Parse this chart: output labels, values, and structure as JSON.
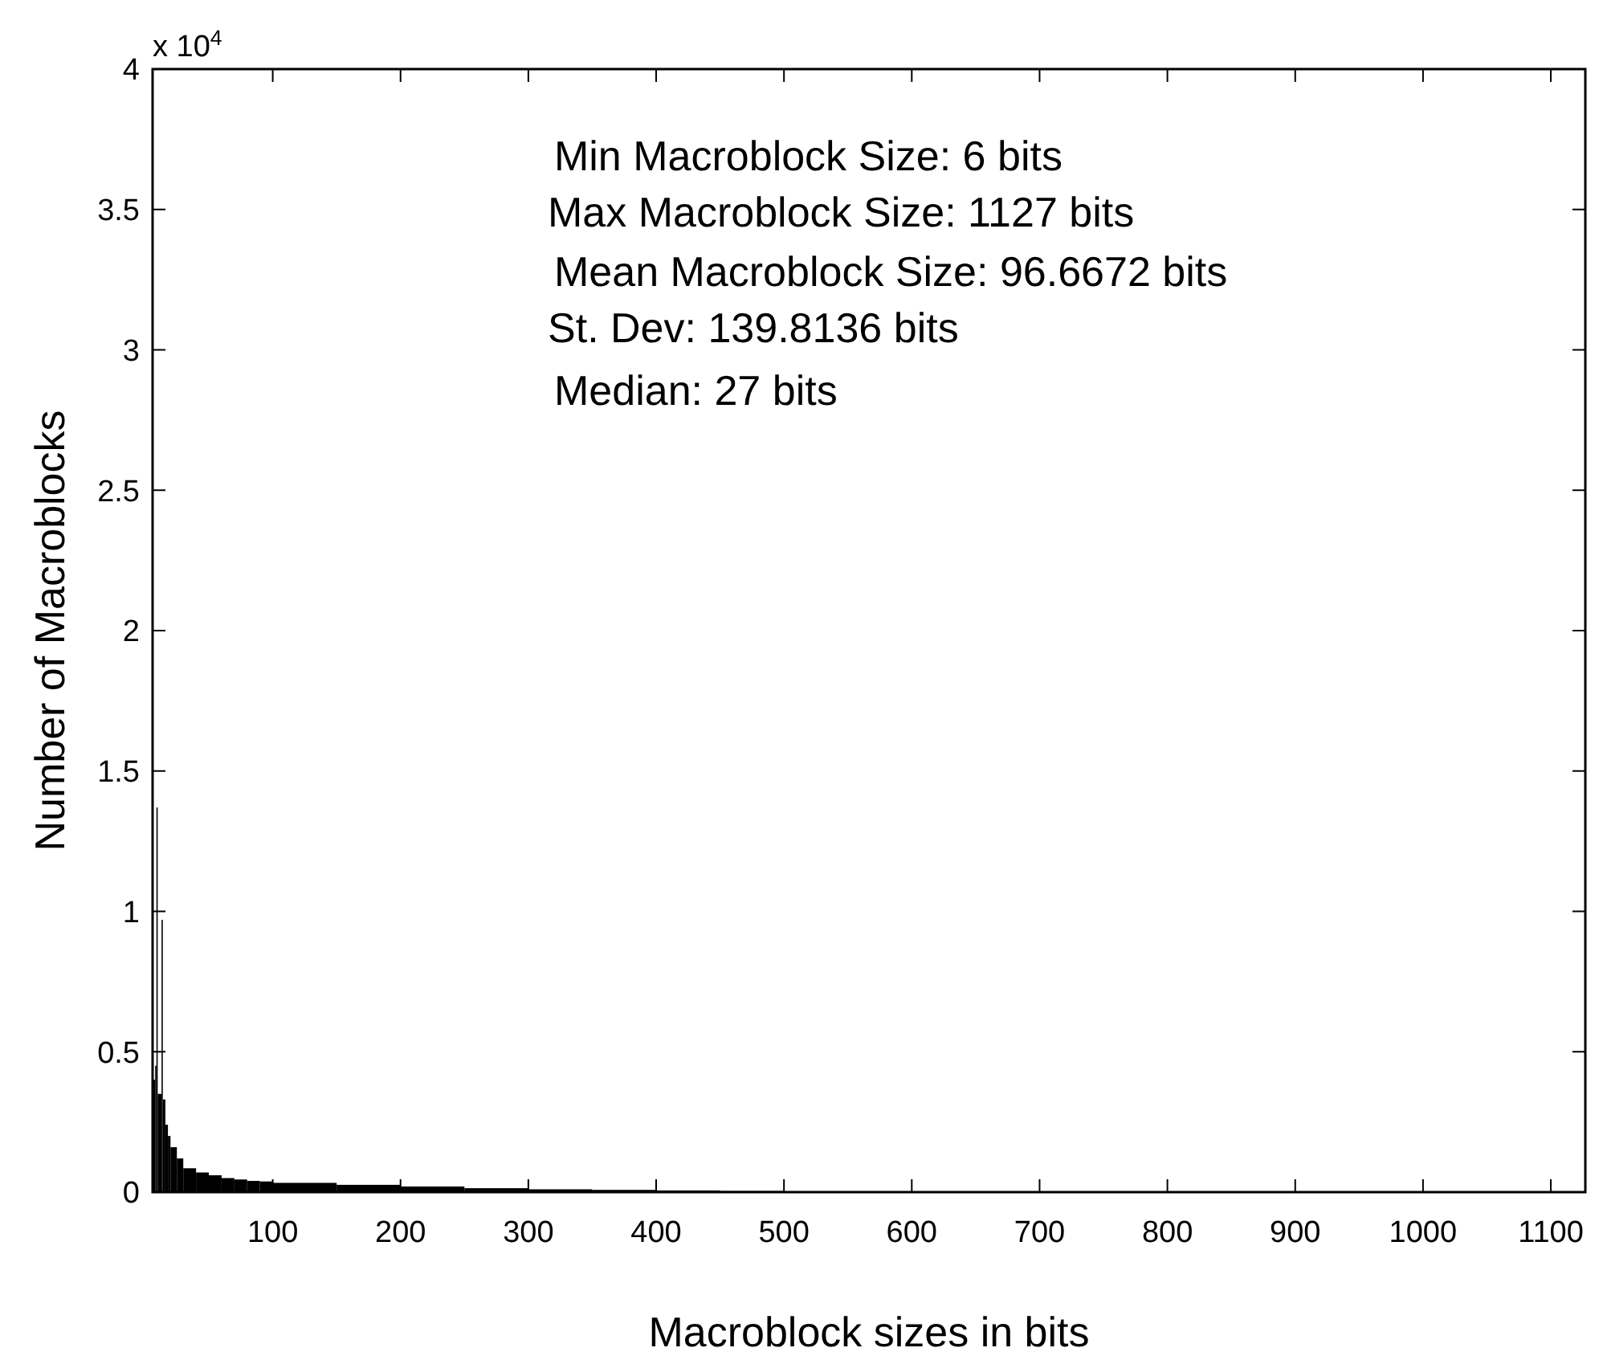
{
  "chart_data": {
    "type": "histogram",
    "xlabel": "Macroblock sizes in bits",
    "ylabel": "Number of Macroblocks",
    "color": "#000000",
    "bins": [
      6,
      8,
      9,
      10,
      13,
      14,
      16,
      18,
      20,
      25,
      30,
      40,
      50,
      60,
      70,
      80,
      90,
      100,
      150,
      200,
      250,
      300,
      350,
      400,
      450,
      500,
      550,
      600,
      700,
      800,
      900
    ],
    "values": [
      0.4,
      0.45,
      1.37,
      0.35,
      0.97,
      0.33,
      0.24,
      0.2,
      0.16,
      0.12,
      0.085,
      0.07,
      0.06,
      0.05,
      0.045,
      0.04,
      0.038,
      0.033,
      0.026,
      0.02,
      0.014,
      0.01,
      0.008,
      0.006,
      0.004,
      0.003,
      0.003,
      0.002,
      0.001,
      0.001
    ],
    "xlim": [
      6,
      1127
    ],
    "xticks": [
      100,
      200,
      300,
      400,
      500,
      600,
      700,
      800,
      900,
      1000,
      1100
    ],
    "ylim": [
      0,
      4
    ],
    "yticks": [
      0,
      0.5,
      1,
      1.5,
      2,
      2.5,
      3,
      3.5,
      4
    ],
    "grid": false,
    "annotations": [
      "x 10$^{4}$",
      "Min Macroblock Size: 6 bits",
      "Max Macroblock Size: 1127 bits",
      "Mean Macroblock Size: 96.6672 bits",
      "St. Dev: 139.8136 bits",
      "Median: 27 bits"
    ]
  }
}
